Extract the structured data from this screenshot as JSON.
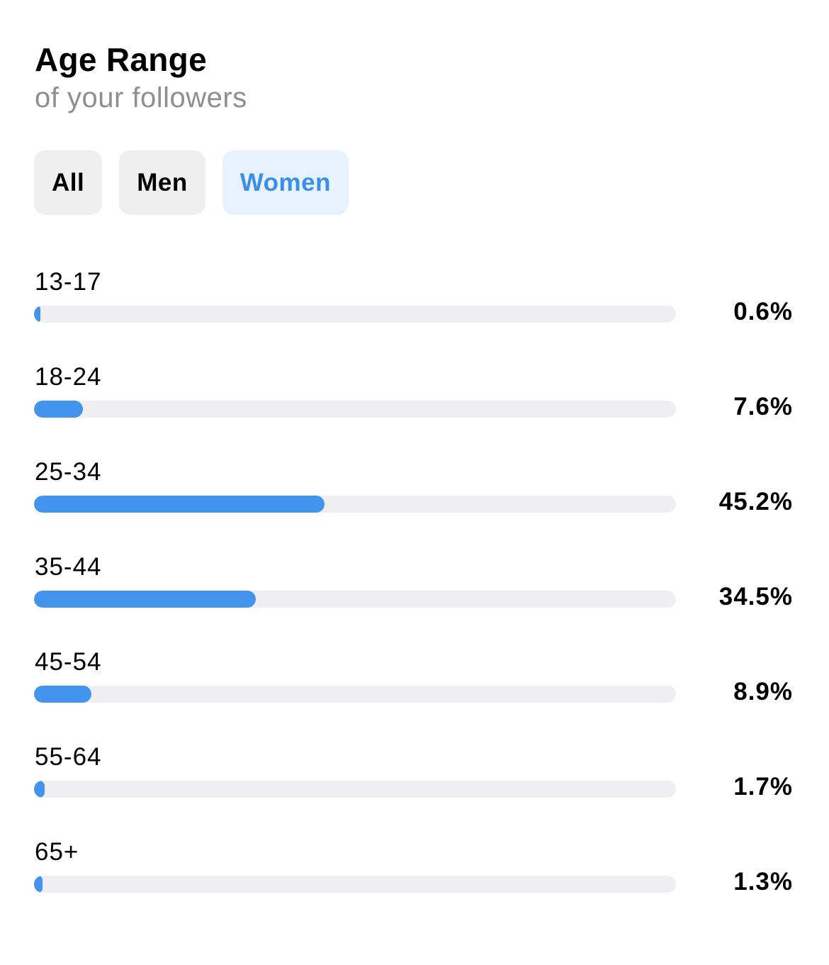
{
  "header": {
    "title": "Age Range",
    "subtitle": "of your followers"
  },
  "filters": [
    {
      "label": "All",
      "active": false
    },
    {
      "label": "Men",
      "active": false
    },
    {
      "label": "Women",
      "active": true
    }
  ],
  "colors": {
    "accent": "#4294ec",
    "active_filter_bg": "#e6f2fd",
    "active_filter_text": "#3d8ee6",
    "filter_bg": "#efefef",
    "track": "#efeff1",
    "subtitle": "#8e8e93"
  },
  "age_groups": [
    {
      "label": "13-17",
      "value_text": "0.6%",
      "percent": 0.6
    },
    {
      "label": "18-24",
      "value_text": "7.6%",
      "percent": 7.6
    },
    {
      "label": "25-34",
      "value_text": "45.2%",
      "percent": 45.2
    },
    {
      "label": "35-44",
      "value_text": "34.5%",
      "percent": 34.5
    },
    {
      "label": "45-54",
      "value_text": "8.9%",
      "percent": 8.9
    },
    {
      "label": "55-64",
      "value_text": "1.7%",
      "percent": 1.7
    },
    {
      "label": "65+",
      "value_text": "1.3%",
      "percent": 1.3
    }
  ]
}
